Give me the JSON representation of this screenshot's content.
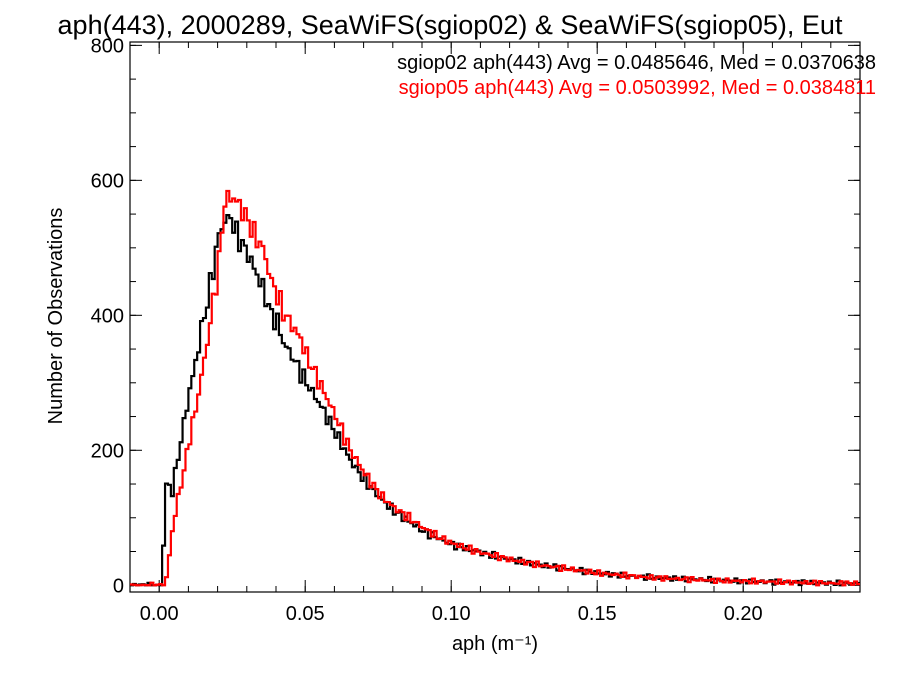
{
  "title": "aph(443), 2000289, SeaWiFS(sgiop02) & SeaWiFS(sgiop05), Eut",
  "chart_data": {
    "type": "histogram-step",
    "title": "aph(443), 2000289, SeaWiFS(sgiop02) & SeaWiFS(sgiop05), Eut",
    "xlabel": "aph (m⁻¹)",
    "ylabel": "Number of Observations",
    "xlim": [
      -0.01,
      0.24
    ],
    "ylim": [
      -10,
      805
    ],
    "xticks": [
      0.0,
      0.05,
      0.1,
      0.15,
      0.2
    ],
    "xtick_labels": [
      "0.00",
      "0.05",
      "0.10",
      "0.15",
      "0.20"
    ],
    "yticks": [
      0,
      200,
      400,
      600,
      800
    ],
    "ytick_labels": [
      "0",
      "200",
      "400",
      "600",
      "800"
    ],
    "grid": false,
    "series": [
      {
        "label": "sgiop02 aph(443) Avg = 0.0485646, Med = 0.0370638",
        "color": "#000000",
        "points": [
          [
            -0.01,
            0
          ],
          [
            0.0,
            0
          ],
          [
            0.001,
            60
          ],
          [
            0.002,
            150
          ],
          [
            0.004,
            140
          ],
          [
            0.006,
            190
          ],
          [
            0.008,
            240
          ],
          [
            0.01,
            290
          ],
          [
            0.012,
            330
          ],
          [
            0.014,
            380
          ],
          [
            0.016,
            420
          ],
          [
            0.018,
            470
          ],
          [
            0.02,
            520
          ],
          [
            0.022,
            540
          ],
          [
            0.024,
            545
          ],
          [
            0.026,
            520
          ],
          [
            0.028,
            505
          ],
          [
            0.03,
            490
          ],
          [
            0.032,
            470
          ],
          [
            0.035,
            440
          ],
          [
            0.038,
            400
          ],
          [
            0.04,
            390
          ],
          [
            0.042,
            360
          ],
          [
            0.045,
            340
          ],
          [
            0.048,
            315
          ],
          [
            0.05,
            300
          ],
          [
            0.055,
            265
          ],
          [
            0.06,
            225
          ],
          [
            0.065,
            185
          ],
          [
            0.07,
            155
          ],
          [
            0.075,
            130
          ],
          [
            0.08,
            110
          ],
          [
            0.085,
            95
          ],
          [
            0.09,
            80
          ],
          [
            0.095,
            70
          ],
          [
            0.1,
            60
          ],
          [
            0.11,
            48
          ],
          [
            0.12,
            38
          ],
          [
            0.13,
            30
          ],
          [
            0.14,
            24
          ],
          [
            0.15,
            18
          ],
          [
            0.16,
            14
          ],
          [
            0.17,
            11
          ],
          [
            0.18,
            9
          ],
          [
            0.19,
            8
          ],
          [
            0.2,
            6
          ],
          [
            0.21,
            5
          ],
          [
            0.22,
            4
          ],
          [
            0.23,
            3
          ],
          [
            0.24,
            3
          ]
        ]
      },
      {
        "label": "sgiop05 aph(443) Avg = 0.0503992, Med = 0.0384811",
        "color": "#ff0000",
        "points": [
          [
            -0.01,
            0
          ],
          [
            0.001,
            0
          ],
          [
            0.002,
            10
          ],
          [
            0.004,
            80
          ],
          [
            0.006,
            130
          ],
          [
            0.008,
            170
          ],
          [
            0.01,
            220
          ],
          [
            0.012,
            260
          ],
          [
            0.014,
            310
          ],
          [
            0.016,
            360
          ],
          [
            0.018,
            420
          ],
          [
            0.02,
            480
          ],
          [
            0.022,
            570
          ],
          [
            0.024,
            575
          ],
          [
            0.026,
            570
          ],
          [
            0.028,
            555
          ],
          [
            0.03,
            540
          ],
          [
            0.032,
            520
          ],
          [
            0.035,
            500
          ],
          [
            0.038,
            450
          ],
          [
            0.04,
            430
          ],
          [
            0.042,
            405
          ],
          [
            0.045,
            385
          ],
          [
            0.048,
            365
          ],
          [
            0.05,
            340
          ],
          [
            0.055,
            295
          ],
          [
            0.06,
            250
          ],
          [
            0.065,
            200
          ],
          [
            0.07,
            165
          ],
          [
            0.075,
            135
          ],
          [
            0.08,
            115
          ],
          [
            0.085,
            100
          ],
          [
            0.09,
            85
          ],
          [
            0.095,
            72
          ],
          [
            0.1,
            62
          ],
          [
            0.11,
            48
          ],
          [
            0.12,
            38
          ],
          [
            0.13,
            30
          ],
          [
            0.14,
            24
          ],
          [
            0.15,
            18
          ],
          [
            0.16,
            14
          ],
          [
            0.17,
            11
          ],
          [
            0.18,
            9
          ],
          [
            0.19,
            7
          ],
          [
            0.2,
            6
          ],
          [
            0.21,
            5
          ],
          [
            0.22,
            4
          ],
          [
            0.23,
            3
          ],
          [
            0.24,
            3
          ]
        ]
      }
    ]
  }
}
